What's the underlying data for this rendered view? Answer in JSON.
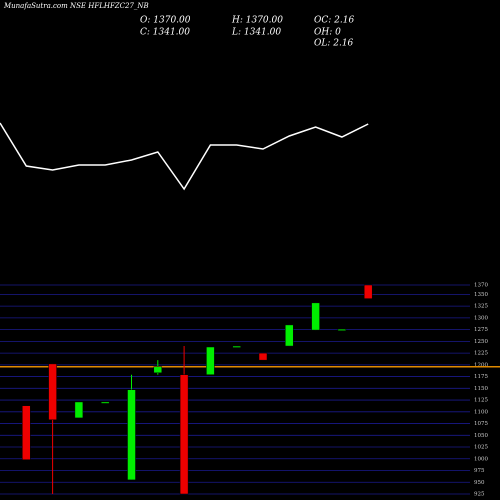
{
  "header": {
    "title": "MunafaSutra.com NSE HFLHFZC27_NB",
    "info": [
      "O: 1370.00",
      "H: 1370.00",
      "OC: 2.16",
      "C: 1341.00",
      "L: 1341.00",
      "OH: 0",
      "OL: 2.16"
    ]
  },
  "chart_data": [
    {
      "type": "line",
      "color": "#ffffff",
      "categories": [
        null,
        null,
        null,
        null,
        null,
        null,
        null,
        null,
        null,
        null,
        null,
        null,
        null,
        null,
        null
      ],
      "values": [
        77,
        34,
        30,
        35,
        35,
        40,
        48,
        11,
        55,
        55,
        51,
        64,
        73,
        63,
        76
      ]
    },
    {
      "type": "candlestick",
      "categories": [
        null,
        null,
        null,
        null,
        null,
        null,
        null,
        null,
        null,
        null,
        null,
        null,
        null,
        null
      ],
      "open": [
        1113,
        1202,
        1087,
        1119,
        955,
        1183,
        1179,
        1179,
        1238,
        1225,
        1240,
        1274,
        1274,
        1370
      ],
      "high": [
        1113,
        1202,
        1121,
        1121,
        1179,
        1210,
        1240,
        1238,
        1240,
        1225,
        1285,
        1332,
        1276,
        1370
      ],
      "low": [
        998,
        925,
        1087,
        1119,
        955,
        1179,
        925,
        1179,
        1238,
        1210,
        1240,
        1274,
        1274,
        1341
      ],
      "close": [
        998,
        1083,
        1121,
        1121,
        1147,
        1196,
        925,
        1238,
        1240,
        1210,
        1285,
        1332,
        1276,
        1341
      ],
      "up_color": "#00ee00",
      "down_color": "#ee0000",
      "grid_color": "#1a1a8c",
      "ref_line": 1196,
      "ref_color": "#e08a00",
      "ylim": [
        925,
        1370
      ],
      "yticks": [
        925,
        950,
        975,
        1000,
        1025,
        1050,
        1075,
        1100,
        1125,
        1150,
        1175,
        1200,
        1225,
        1250,
        1275,
        1300,
        1325,
        1350,
        1370
      ]
    }
  ]
}
